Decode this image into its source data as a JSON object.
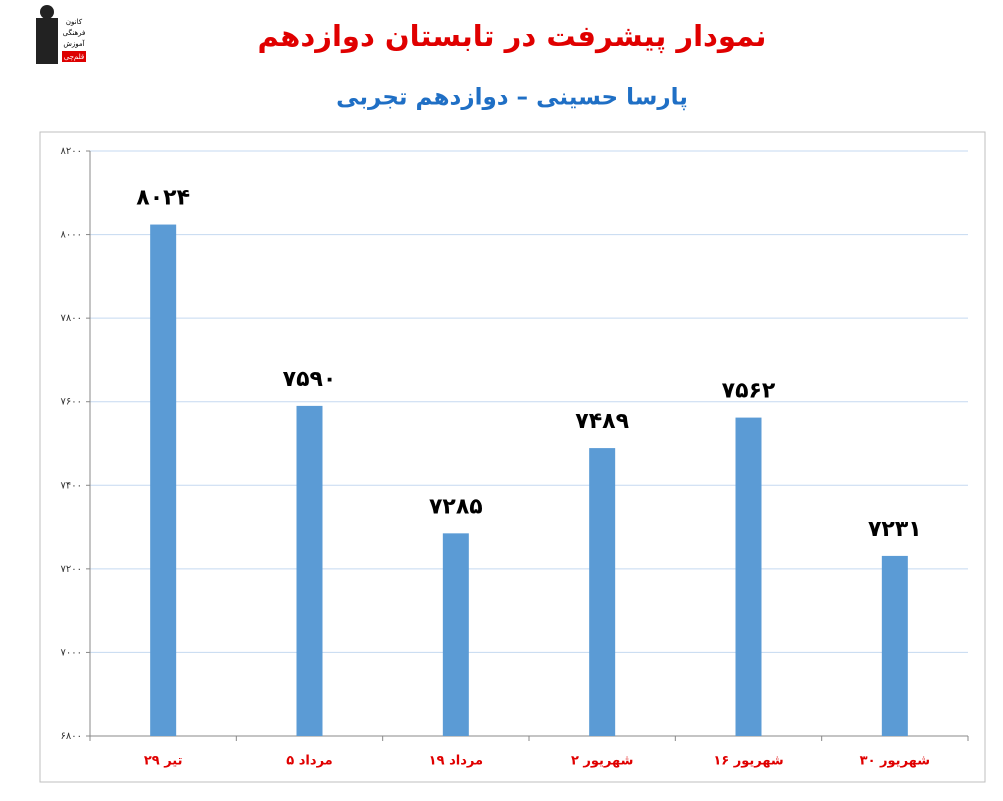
{
  "chart_data": {
    "type": "bar",
    "title": "نمودار پیشرفت در تابستان دوازدهم",
    "subtitle": "پارسا حسینی – دوازدهم تجربی",
    "logo": {
      "lines": [
        "کانون",
        "فرهنگی",
        "آموزش"
      ],
      "badge": "قلم‌چی"
    },
    "categories": [
      "۲۹ تیر",
      "۵ مرداد",
      "۱۹ مرداد",
      "۲ شهریور",
      "۱۶ شهریور",
      "۳۰ شهریور"
    ],
    "values": [
      8024,
      7590,
      7285,
      7489,
      7562,
      7231
    ],
    "value_labels": [
      "۸۰۲۴",
      "۷۵۹۰",
      "۷۲۸۵",
      "۷۴۸۹",
      "۷۵۶۲",
      "۷۲۳۱"
    ],
    "color": "#5b9bd5",
    "ylim": [
      6800,
      8200
    ],
    "yticks": [
      {
        "value": 6800,
        "label": "۶۸۰۰"
      },
      {
        "value": 7000,
        "label": "۷۰۰۰"
      },
      {
        "value": 7200,
        "label": "۷۲۰۰"
      },
      {
        "value": 7400,
        "label": "۷۴۰۰"
      },
      {
        "value": 7600,
        "label": "۷۶۰۰"
      },
      {
        "value": 7800,
        "label": "۷۸۰۰"
      },
      {
        "value": 8000,
        "label": "۸۰۰۰"
      },
      {
        "value": 8200,
        "label": "۸۲۰۰"
      }
    ],
    "grid": true
  }
}
